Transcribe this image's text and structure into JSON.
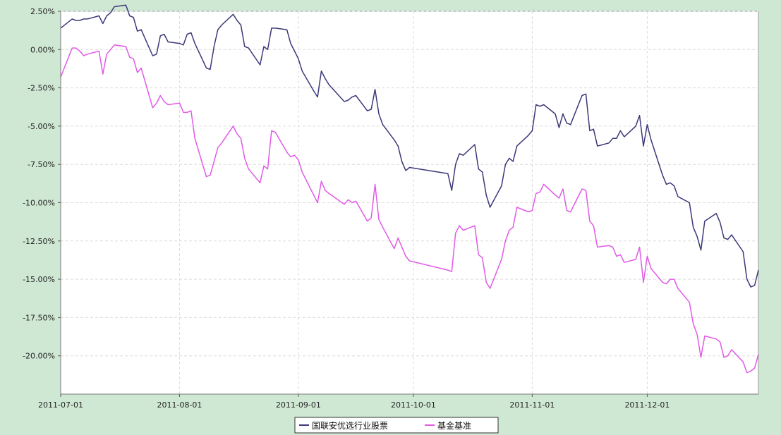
{
  "chart_data": {
    "type": "line",
    "title": "",
    "xlabel": "",
    "ylabel": "",
    "grid": true,
    "legend_position": "bottom-center",
    "ylim": [
      -22.5,
      2.5
    ],
    "yticks": [
      "2.50%",
      "0.00%",
      "-2.50%",
      "-5.00%",
      "-7.50%",
      "-10.00%",
      "-12.50%",
      "-15.00%",
      "-17.50%",
      "-20.00%"
    ],
    "ytick_values": [
      2.5,
      0,
      -2.5,
      -5,
      -7.5,
      -10,
      -12.5,
      -15,
      -17.5,
      -20
    ],
    "xlim": [
      "2011-07-01",
      "2011-12-30"
    ],
    "xticks": [
      "2011-07-01",
      "2011-08-01",
      "2011-09-01",
      "2011-10-01",
      "2011-11-01",
      "2011-12-01"
    ],
    "colors": {
      "plot_bg": "#ffffff",
      "page_bg": "#cfe8d3",
      "grid": "#dcdcdc",
      "axis": "#555555"
    },
    "series": [
      {
        "name": "国联安优选行业股票",
        "color": "#3b3878",
        "points": [
          [
            "2011-07-01",
            1.4
          ],
          [
            "2011-07-04",
            2.0
          ],
          [
            "2011-07-05",
            1.9
          ],
          [
            "2011-07-06",
            1.9
          ],
          [
            "2011-07-07",
            2.0
          ],
          [
            "2011-07-08",
            2.0
          ],
          [
            "2011-07-11",
            2.2
          ],
          [
            "2011-07-12",
            1.7
          ],
          [
            "2011-07-13",
            2.2
          ],
          [
            "2011-07-14",
            2.4
          ],
          [
            "2011-07-15",
            2.8
          ],
          [
            "2011-07-18",
            2.9
          ],
          [
            "2011-07-19",
            2.2
          ],
          [
            "2011-07-20",
            2.1
          ],
          [
            "2011-07-21",
            1.2
          ],
          [
            "2011-07-22",
            1.3
          ],
          [
            "2011-07-25",
            -0.4
          ],
          [
            "2011-07-26",
            -0.3
          ],
          [
            "2011-07-27",
            0.9
          ],
          [
            "2011-07-28",
            1.0
          ],
          [
            "2011-07-29",
            0.5
          ],
          [
            "2011-08-01",
            0.4
          ],
          [
            "2011-08-02",
            0.3
          ],
          [
            "2011-08-03",
            1.0
          ],
          [
            "2011-08-04",
            1.1
          ],
          [
            "2011-08-05",
            0.4
          ],
          [
            "2011-08-08",
            -1.2
          ],
          [
            "2011-08-09",
            -1.3
          ],
          [
            "2011-08-10",
            0.2
          ],
          [
            "2011-08-11",
            1.3
          ],
          [
            "2011-08-12",
            1.6
          ],
          [
            "2011-08-15",
            2.3
          ],
          [
            "2011-08-16",
            1.9
          ],
          [
            "2011-08-17",
            1.6
          ],
          [
            "2011-08-18",
            0.2
          ],
          [
            "2011-08-19",
            0.1
          ],
          [
            "2011-08-22",
            -1.0
          ],
          [
            "2011-08-23",
            0.2
          ],
          [
            "2011-08-24",
            0.0
          ],
          [
            "2011-08-25",
            1.4
          ],
          [
            "2011-08-26",
            1.4
          ],
          [
            "2011-08-29",
            1.3
          ],
          [
            "2011-08-30",
            0.4
          ],
          [
            "2011-08-31",
            -0.1
          ],
          [
            "2011-09-01",
            -0.6
          ],
          [
            "2011-09-02",
            -1.4
          ],
          [
            "2011-09-05",
            -2.7
          ],
          [
            "2011-09-06",
            -3.1
          ],
          [
            "2011-09-07",
            -1.4
          ],
          [
            "2011-09-08",
            -1.9
          ],
          [
            "2011-09-09",
            -2.3
          ],
          [
            "2011-09-13",
            -3.4
          ],
          [
            "2011-09-14",
            -3.3
          ],
          [
            "2011-09-15",
            -3.1
          ],
          [
            "2011-09-16",
            -3.0
          ],
          [
            "2011-09-19",
            -4.0
          ],
          [
            "2011-09-20",
            -3.9
          ],
          [
            "2011-09-21",
            -2.6
          ],
          [
            "2011-09-22",
            -4.2
          ],
          [
            "2011-09-23",
            -4.9
          ],
          [
            "2011-09-26",
            -5.9
          ],
          [
            "2011-09-27",
            -6.3
          ],
          [
            "2011-09-28",
            -7.3
          ],
          [
            "2011-09-29",
            -7.9
          ],
          [
            "2011-09-30",
            -7.7
          ],
          [
            "2011-10-10",
            -8.1
          ],
          [
            "2011-10-11",
            -9.2
          ],
          [
            "2011-10-12",
            -7.5
          ],
          [
            "2011-10-13",
            -6.8
          ],
          [
            "2011-10-14",
            -6.9
          ],
          [
            "2011-10-17",
            -6.2
          ],
          [
            "2011-10-18",
            -7.8
          ],
          [
            "2011-10-19",
            -8.0
          ],
          [
            "2011-10-20",
            -9.5
          ],
          [
            "2011-10-21",
            -10.3
          ],
          [
            "2011-10-24",
            -8.9
          ],
          [
            "2011-10-25",
            -7.5
          ],
          [
            "2011-10-26",
            -7.1
          ],
          [
            "2011-10-27",
            -7.3
          ],
          [
            "2011-10-28",
            -6.3
          ],
          [
            "2011-10-31",
            -5.6
          ],
          [
            "2011-11-01",
            -5.3
          ],
          [
            "2011-11-02",
            -3.6
          ],
          [
            "2011-11-03",
            -3.7
          ],
          [
            "2011-11-04",
            -3.6
          ],
          [
            "2011-11-07",
            -4.2
          ],
          [
            "2011-11-08",
            -5.1
          ],
          [
            "2011-11-09",
            -4.2
          ],
          [
            "2011-11-10",
            -4.8
          ],
          [
            "2011-11-11",
            -4.9
          ],
          [
            "2011-11-14",
            -3.0
          ],
          [
            "2011-11-15",
            -2.9
          ],
          [
            "2011-11-16",
            -5.3
          ],
          [
            "2011-11-17",
            -5.2
          ],
          [
            "2011-11-18",
            -6.3
          ],
          [
            "2011-11-21",
            -6.1
          ],
          [
            "2011-11-22",
            -5.8
          ],
          [
            "2011-11-23",
            -5.8
          ],
          [
            "2011-11-24",
            -5.3
          ],
          [
            "2011-11-25",
            -5.7
          ],
          [
            "2011-11-28",
            -5.0
          ],
          [
            "2011-11-29",
            -4.3
          ],
          [
            "2011-11-30",
            -6.3
          ],
          [
            "2011-12-01",
            -4.9
          ],
          [
            "2011-12-02",
            -5.9
          ],
          [
            "2011-12-05",
            -8.2
          ],
          [
            "2011-12-06",
            -8.8
          ],
          [
            "2011-12-07",
            -8.7
          ],
          [
            "2011-12-08",
            -8.9
          ],
          [
            "2011-12-09",
            -9.6
          ],
          [
            "2011-12-12",
            -10.0
          ],
          [
            "2011-12-13",
            -11.6
          ],
          [
            "2011-12-14",
            -12.2
          ],
          [
            "2011-12-15",
            -13.1
          ],
          [
            "2011-12-16",
            -11.2
          ],
          [
            "2011-12-19",
            -10.7
          ],
          [
            "2011-12-20",
            -11.3
          ],
          [
            "2011-12-21",
            -12.3
          ],
          [
            "2011-12-22",
            -12.4
          ],
          [
            "2011-12-23",
            -12.1
          ],
          [
            "2011-12-26",
            -13.2
          ],
          [
            "2011-12-27",
            -15.0
          ],
          [
            "2011-12-28",
            -15.5
          ],
          [
            "2011-12-29",
            -15.4
          ],
          [
            "2011-12-30",
            -14.4
          ]
        ]
      },
      {
        "name": "基金基准",
        "color": "#e05ae6",
        "points": [
          [
            "2011-07-01",
            -1.8
          ],
          [
            "2011-07-04",
            0.1
          ],
          [
            "2011-07-05",
            0.1
          ],
          [
            "2011-07-06",
            -0.1
          ],
          [
            "2011-07-07",
            -0.4
          ],
          [
            "2011-07-08",
            -0.3
          ],
          [
            "2011-07-11",
            -0.1
          ],
          [
            "2011-07-12",
            -1.6
          ],
          [
            "2011-07-13",
            -0.3
          ],
          [
            "2011-07-14",
            0.0
          ],
          [
            "2011-07-15",
            0.3
          ],
          [
            "2011-07-18",
            0.2
          ],
          [
            "2011-07-19",
            -0.5
          ],
          [
            "2011-07-20",
            -0.6
          ],
          [
            "2011-07-21",
            -1.5
          ],
          [
            "2011-07-22",
            -1.2
          ],
          [
            "2011-07-25",
            -3.8
          ],
          [
            "2011-07-26",
            -3.5
          ],
          [
            "2011-07-27",
            -3.0
          ],
          [
            "2011-07-28",
            -3.4
          ],
          [
            "2011-07-29",
            -3.6
          ],
          [
            "2011-08-01",
            -3.5
          ],
          [
            "2011-08-02",
            -4.1
          ],
          [
            "2011-08-03",
            -4.1
          ],
          [
            "2011-08-04",
            -4.0
          ],
          [
            "2011-08-05",
            -5.8
          ],
          [
            "2011-08-08",
            -8.3
          ],
          [
            "2011-08-09",
            -8.2
          ],
          [
            "2011-08-10",
            -7.3
          ],
          [
            "2011-08-11",
            -6.4
          ],
          [
            "2011-08-12",
            -6.1
          ],
          [
            "2011-08-15",
            -5.0
          ],
          [
            "2011-08-16",
            -5.5
          ],
          [
            "2011-08-17",
            -5.8
          ],
          [
            "2011-08-18",
            -7.1
          ],
          [
            "2011-08-19",
            -7.8
          ],
          [
            "2011-08-22",
            -8.7
          ],
          [
            "2011-08-23",
            -7.6
          ],
          [
            "2011-08-24",
            -7.8
          ],
          [
            "2011-08-25",
            -5.3
          ],
          [
            "2011-08-26",
            -5.4
          ],
          [
            "2011-08-29",
            -6.7
          ],
          [
            "2011-08-30",
            -7.0
          ],
          [
            "2011-08-31",
            -6.9
          ],
          [
            "2011-09-01",
            -7.2
          ],
          [
            "2011-09-02",
            -8.0
          ],
          [
            "2011-09-05",
            -9.5
          ],
          [
            "2011-09-06",
            -10.0
          ],
          [
            "2011-09-07",
            -8.6
          ],
          [
            "2011-09-08",
            -9.2
          ],
          [
            "2011-09-09",
            -9.4
          ],
          [
            "2011-09-13",
            -10.1
          ],
          [
            "2011-09-14",
            -9.8
          ],
          [
            "2011-09-15",
            -10.0
          ],
          [
            "2011-09-16",
            -9.9
          ],
          [
            "2011-09-19",
            -11.2
          ],
          [
            "2011-09-20",
            -11.0
          ],
          [
            "2011-09-21",
            -8.8
          ],
          [
            "2011-09-22",
            -11.1
          ],
          [
            "2011-09-23",
            -11.6
          ],
          [
            "2011-09-26",
            -13.0
          ],
          [
            "2011-09-27",
            -12.3
          ],
          [
            "2011-09-28",
            -12.9
          ],
          [
            "2011-09-29",
            -13.5
          ],
          [
            "2011-09-30",
            -13.8
          ],
          [
            "2011-10-10",
            -14.4
          ],
          [
            "2011-10-11",
            -14.5
          ],
          [
            "2011-10-12",
            -12.0
          ],
          [
            "2011-10-13",
            -11.5
          ],
          [
            "2011-10-14",
            -11.8
          ],
          [
            "2011-10-17",
            -11.5
          ],
          [
            "2011-10-18",
            -13.4
          ],
          [
            "2011-10-19",
            -13.6
          ],
          [
            "2011-10-20",
            -15.2
          ],
          [
            "2011-10-21",
            -15.6
          ],
          [
            "2011-10-24",
            -13.7
          ],
          [
            "2011-10-25",
            -12.5
          ],
          [
            "2011-10-26",
            -11.8
          ],
          [
            "2011-10-27",
            -11.6
          ],
          [
            "2011-10-28",
            -10.3
          ],
          [
            "2011-10-31",
            -10.6
          ],
          [
            "2011-11-01",
            -10.5
          ],
          [
            "2011-11-02",
            -9.4
          ],
          [
            "2011-11-03",
            -9.3
          ],
          [
            "2011-11-04",
            -8.8
          ],
          [
            "2011-11-07",
            -9.5
          ],
          [
            "2011-11-08",
            -9.7
          ],
          [
            "2011-11-09",
            -9.1
          ],
          [
            "2011-11-10",
            -10.5
          ],
          [
            "2011-11-11",
            -10.6
          ],
          [
            "2011-11-14",
            -9.1
          ],
          [
            "2011-11-15",
            -9.2
          ],
          [
            "2011-11-16",
            -11.2
          ],
          [
            "2011-11-17",
            -11.5
          ],
          [
            "2011-11-18",
            -12.9
          ],
          [
            "2011-11-21",
            -12.8
          ],
          [
            "2011-11-22",
            -12.9
          ],
          [
            "2011-11-23",
            -13.5
          ],
          [
            "2011-11-24",
            -13.4
          ],
          [
            "2011-11-25",
            -13.9
          ],
          [
            "2011-11-28",
            -13.7
          ],
          [
            "2011-11-29",
            -12.9
          ],
          [
            "2011-11-30",
            -15.2
          ],
          [
            "2011-12-01",
            -13.5
          ],
          [
            "2011-12-02",
            -14.3
          ],
          [
            "2011-12-05",
            -15.2
          ],
          [
            "2011-12-06",
            -15.3
          ],
          [
            "2011-12-07",
            -15.0
          ],
          [
            "2011-12-08",
            -15.0
          ],
          [
            "2011-12-09",
            -15.6
          ],
          [
            "2011-12-12",
            -16.5
          ],
          [
            "2011-12-13",
            -17.9
          ],
          [
            "2011-12-14",
            -18.6
          ],
          [
            "2011-12-15",
            -20.1
          ],
          [
            "2011-12-16",
            -18.7
          ],
          [
            "2011-12-19",
            -18.9
          ],
          [
            "2011-12-20",
            -19.1
          ],
          [
            "2011-12-21",
            -20.1
          ],
          [
            "2011-12-22",
            -20.0
          ],
          [
            "2011-12-23",
            -19.6
          ],
          [
            "2011-12-26",
            -20.4
          ],
          [
            "2011-12-27",
            -21.1
          ],
          [
            "2011-12-28",
            -21.0
          ],
          [
            "2011-12-29",
            -20.8
          ],
          [
            "2011-12-30",
            -19.9
          ]
        ]
      }
    ]
  }
}
